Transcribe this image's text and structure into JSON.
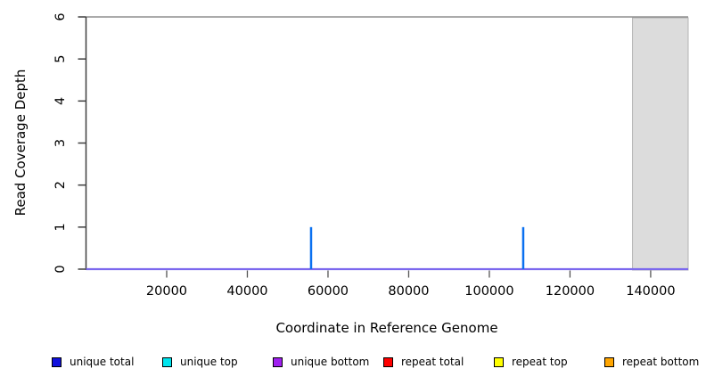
{
  "chart_data": {
    "type": "line",
    "title": "",
    "xlabel": "Coordinate in Reference Genome",
    "ylabel": "Read Coverage Depth",
    "xlim": [
      0,
      149300
    ],
    "ylim": [
      0,
      6
    ],
    "x_ticks": [
      20000,
      40000,
      60000,
      80000,
      100000,
      120000,
      140000
    ],
    "y_ticks": [
      0,
      1,
      2,
      3,
      4,
      5,
      6
    ],
    "grid": false,
    "legend_position": "bottom",
    "series": [
      {
        "name": "unique total",
        "color": "#1111dd",
        "baseline_depth": 0,
        "spikes": [
          {
            "x": 55800,
            "depth": 1
          },
          {
            "x": 108400,
            "depth": 1
          }
        ]
      },
      {
        "name": "unique top",
        "color": "#00e5ee",
        "baseline_depth": 0,
        "spikes": []
      },
      {
        "name": "unique bottom",
        "color": "#a020f0",
        "baseline_depth": 0,
        "spikes": []
      },
      {
        "name": "repeat total",
        "color": "#ff0000",
        "baseline_depth": 0,
        "spikes": []
      },
      {
        "name": "repeat top",
        "color": "#ffff00",
        "baseline_depth": 0,
        "spikes": []
      },
      {
        "name": "repeat bottom",
        "color": "#ffa500",
        "baseline_depth": 0,
        "spikes": []
      }
    ],
    "spike_color": "#0a70f0",
    "visible_baseline_color": "#7b68ee",
    "shaded_region": {
      "x_start": 135500,
      "x_end": 149300,
      "fill": "#dcdcdc",
      "border": "#b4b4b4"
    },
    "axis_color": "#3f3f3f",
    "top_border_color": "#8f8f8f",
    "tick_color": "#555555",
    "legend": [
      {
        "label": "unique total",
        "color": "#1111dd"
      },
      {
        "label": "unique top",
        "color": "#00e5ee"
      },
      {
        "label": "unique bottom",
        "color": "#a020f0"
      },
      {
        "label": "repeat total",
        "color": "#ff0000"
      },
      {
        "label": "repeat top",
        "color": "#ffff00"
      },
      {
        "label": "repeat bottom",
        "color": "#ffa500"
      }
    ]
  }
}
